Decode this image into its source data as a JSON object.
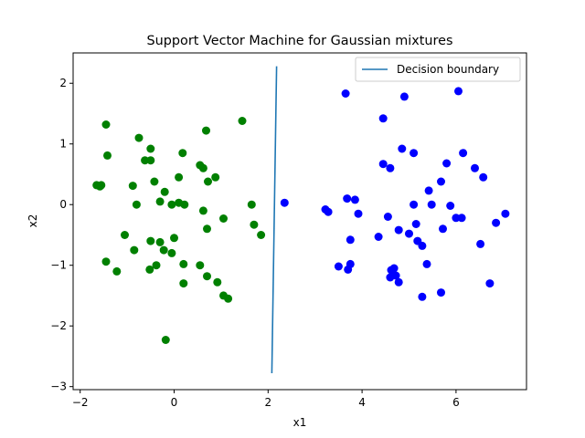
{
  "chart_data": {
    "type": "scatter",
    "title": "Support Vector Machine for Gaussian mixtures",
    "xlabel": "x1",
    "ylabel": "x2",
    "xlim": [
      -2.15,
      7.5
    ],
    "ylim": [
      -3.05,
      2.5
    ],
    "xticks": [
      -2,
      0,
      2,
      4,
      6
    ],
    "yticks": [
      -3,
      -2,
      -1,
      0,
      1,
      2
    ],
    "grid": false,
    "legend_position": "top-right",
    "series": [
      {
        "color": "#008000",
        "points": [
          [
            -1.45,
            1.32
          ],
          [
            -1.42,
            0.81
          ],
          [
            -1.65,
            0.32
          ],
          [
            -1.58,
            0.3
          ],
          [
            -1.55,
            0.32
          ],
          [
            -1.45,
            -0.94
          ],
          [
            -1.22,
            -1.1
          ],
          [
            -1.05,
            -0.5
          ],
          [
            -0.85,
            -0.75
          ],
          [
            -0.75,
            1.1
          ],
          [
            -0.62,
            0.73
          ],
          [
            -0.8,
            0.0
          ],
          [
            -0.88,
            0.31
          ],
          [
            -0.5,
            0.92
          ],
          [
            -0.5,
            0.73
          ],
          [
            -0.42,
            0.38
          ],
          [
            -0.3,
            0.05
          ],
          [
            -0.5,
            -0.6
          ],
          [
            -0.3,
            -0.62
          ],
          [
            -0.22,
            -0.75
          ],
          [
            -0.2,
            0.21
          ],
          [
            -0.05,
            0.0
          ],
          [
            0.1,
            0.03
          ],
          [
            0.1,
            0.45
          ],
          [
            0.18,
            0.85
          ],
          [
            0.22,
            0.0
          ],
          [
            -0.52,
            -1.07
          ],
          [
            -0.38,
            -1.0
          ],
          [
            -0.05,
            -0.8
          ],
          [
            0.0,
            -0.55
          ],
          [
            0.2,
            -0.98
          ],
          [
            0.2,
            -1.3
          ],
          [
            -0.18,
            -2.23
          ],
          [
            0.55,
            0.65
          ],
          [
            0.62,
            0.6
          ],
          [
            0.68,
            1.22
          ],
          [
            0.72,
            0.38
          ],
          [
            0.62,
            -0.1
          ],
          [
            0.7,
            -0.4
          ],
          [
            0.88,
            0.45
          ],
          [
            1.05,
            -0.23
          ],
          [
            0.55,
            -1.0
          ],
          [
            0.7,
            -1.18
          ],
          [
            0.92,
            -1.28
          ],
          [
            1.05,
            -1.5
          ],
          [
            1.15,
            -1.55
          ],
          [
            1.45,
            1.38
          ],
          [
            1.65,
            0.0
          ],
          [
            1.7,
            -0.33
          ],
          [
            1.85,
            -0.5
          ]
        ]
      },
      {
        "color": "#0000ff",
        "points": [
          [
            2.35,
            0.03
          ],
          [
            3.22,
            -0.08
          ],
          [
            3.28,
            -0.12
          ],
          [
            3.5,
            -1.02
          ],
          [
            3.65,
            1.83
          ],
          [
            3.68,
            0.1
          ],
          [
            3.7,
            -1.07
          ],
          [
            3.75,
            -0.98
          ],
          [
            3.75,
            -0.58
          ],
          [
            3.85,
            0.08
          ],
          [
            3.92,
            -0.15
          ],
          [
            4.35,
            -0.53
          ],
          [
            4.45,
            1.42
          ],
          [
            4.45,
            0.67
          ],
          [
            4.55,
            -0.2
          ],
          [
            4.6,
            0.6
          ],
          [
            4.62,
            -1.08
          ],
          [
            4.68,
            -1.05
          ],
          [
            4.6,
            -1.2
          ],
          [
            4.72,
            -1.17
          ],
          [
            4.78,
            -1.28
          ],
          [
            4.78,
            -0.42
          ],
          [
            4.85,
            0.92
          ],
          [
            4.9,
            1.78
          ],
          [
            5.0,
            -0.48
          ],
          [
            5.1,
            0.85
          ],
          [
            5.1,
            0.0
          ],
          [
            5.15,
            -0.32
          ],
          [
            5.18,
            -0.6
          ],
          [
            5.28,
            -0.68
          ],
          [
            5.28,
            -1.52
          ],
          [
            5.38,
            -0.98
          ],
          [
            5.42,
            0.23
          ],
          [
            5.48,
            0.0
          ],
          [
            5.68,
            0.38
          ],
          [
            5.72,
            -0.4
          ],
          [
            5.68,
            -1.45
          ],
          [
            5.8,
            0.68
          ],
          [
            5.88,
            -0.02
          ],
          [
            6.0,
            -0.22
          ],
          [
            6.05,
            1.87
          ],
          [
            6.12,
            -0.22
          ],
          [
            6.15,
            0.85
          ],
          [
            6.4,
            0.6
          ],
          [
            6.52,
            -0.65
          ],
          [
            6.58,
            0.45
          ],
          [
            6.72,
            -1.3
          ],
          [
            6.85,
            -0.3
          ],
          [
            7.05,
            -0.15
          ]
        ]
      }
    ],
    "decision_boundary": {
      "name": "Decision boundary",
      "color": "#1f77b4",
      "x": [
        2.08,
        2.18
      ],
      "y": [
        -2.78,
        2.28
      ]
    }
  }
}
